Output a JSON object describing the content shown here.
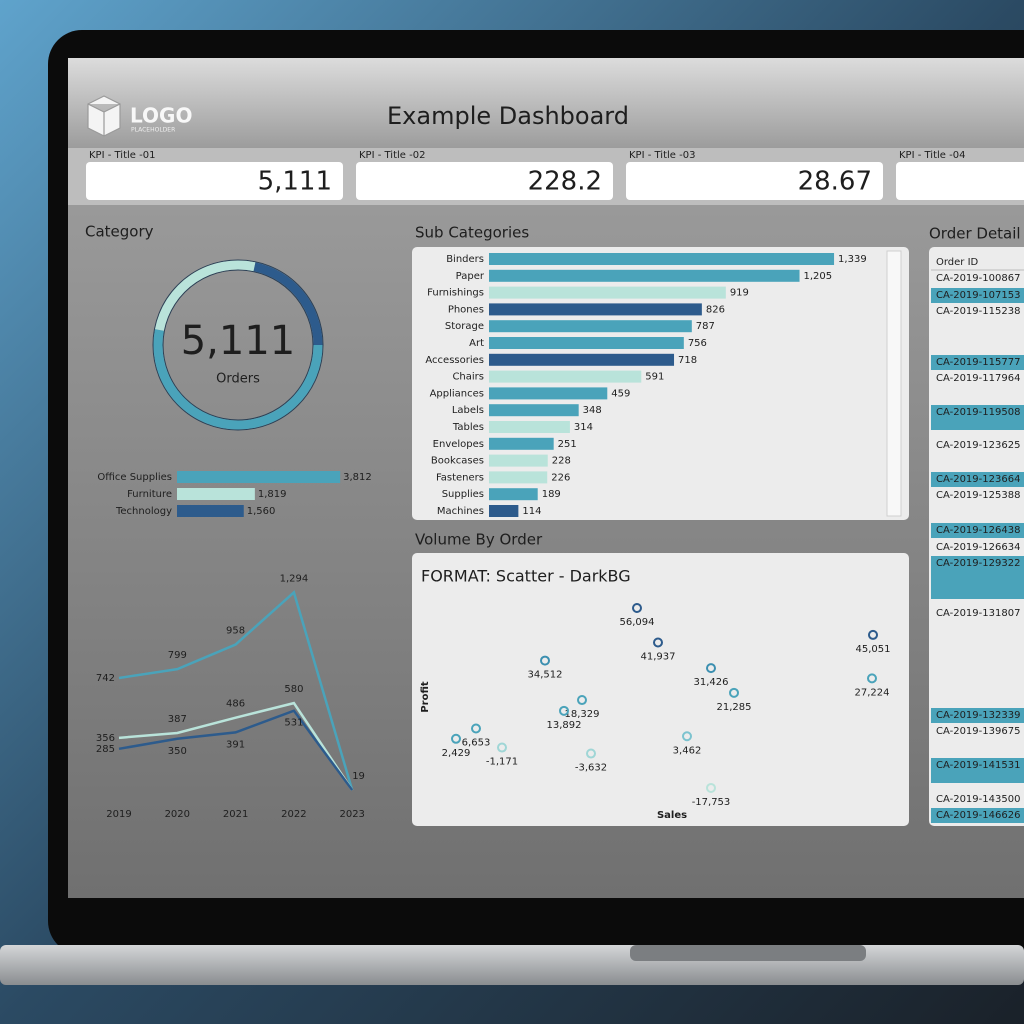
{
  "header": {
    "logo": "LOGO",
    "logo_sub": "PLACEHOLDER",
    "title": "Example Dashboard"
  },
  "kpis": [
    {
      "title": "KPI - Title -01",
      "value": "5,111"
    },
    {
      "title": "KPI - Title -02",
      "value": "228.2"
    },
    {
      "title": "KPI - Title -03",
      "value": "28.67"
    },
    {
      "title": "KPI - Title -04"
    }
  ],
  "chart_data": [
    {
      "type": "donut",
      "title": "Category",
      "center_value": "5,111",
      "center_label": "Orders",
      "categories": [
        "Office Supplies",
        "Furniture",
        "Technology"
      ],
      "values": [
        3812,
        1819,
        1560
      ],
      "value_labels": [
        "3,812",
        "1,819",
        "1,560"
      ],
      "colors": [
        "#4aa3ba",
        "#b9e3da",
        "#2d5b8c"
      ]
    },
    {
      "type": "line",
      "categories": [
        "2019",
        "2020",
        "2021",
        "2022",
        "2023"
      ],
      "series": [
        {
          "color": "#4aa3ba",
          "values": [
            742,
            799,
            958,
            1294,
            19
          ],
          "value_labels": [
            "742",
            "799",
            "958",
            "1,294",
            "19"
          ]
        },
        {
          "color": "#b9e3da",
          "values": [
            356,
            387,
            486,
            580,
            19
          ],
          "value_labels": [
            "356",
            "387",
            "486",
            "580",
            null
          ]
        },
        {
          "color": "#2d5b8c",
          "values": [
            285,
            350,
            391,
            531,
            19
          ],
          "value_labels": [
            "285",
            "350",
            "391",
            "531",
            null
          ]
        }
      ]
    },
    {
      "type": "bar",
      "orientation": "horizontal",
      "title": "Sub Categories",
      "categories": [
        "Binders",
        "Paper",
        "Furnishings",
        "Phones",
        "Storage",
        "Art",
        "Accessories",
        "Chairs",
        "Appliances",
        "Labels",
        "Tables",
        "Envelopes",
        "Bookcases",
        "Fasteners",
        "Supplies",
        "Machines"
      ],
      "values": [
        1339,
        1205,
        919,
        826,
        787,
        756,
        718,
        591,
        459,
        348,
        314,
        251,
        228,
        226,
        189,
        114
      ],
      "value_labels": [
        "1,339",
        "1,205",
        "919",
        "826",
        "787",
        "756",
        "718",
        "591",
        "459",
        "348",
        "314",
        "251",
        "228",
        "226",
        "189",
        "114"
      ],
      "colors": [
        "#4aa3ba",
        "#4aa3ba",
        "#b9e3da",
        "#2d5b8c",
        "#4aa3ba",
        "#4aa3ba",
        "#2d5b8c",
        "#b9e3da",
        "#4aa3ba",
        "#4aa3ba",
        "#b9e3da",
        "#4aa3ba",
        "#b9e3da",
        "#b9e3da",
        "#4aa3ba",
        "#2d5b8c"
      ]
    },
    {
      "type": "scatter",
      "title": "Volume By Order",
      "subtitle": "FORMAT: Scatter - DarkBG",
      "x_label": "Sales",
      "y_label": "Profit",
      "x": [
        39400,
        43600,
        21000,
        54200,
        86600,
        28400,
        24800,
        58800,
        86400,
        49400,
        7200,
        3200,
        12400,
        30200,
        54200
      ],
      "values": [
        56094,
        41937,
        34512,
        31426,
        45051,
        18329,
        13892,
        21285,
        27224,
        3462,
        6653,
        2429,
        -1171,
        -3632,
        -17753
      ],
      "value_labels": [
        "56,094",
        "41,937",
        "34,512",
        "31,426",
        "45,051",
        "18,329",
        "13,892",
        "21,285",
        "27,224",
        "3,462",
        "6,653",
        "2,429",
        "-1,171",
        "-3,632",
        "-17,753"
      ],
      "colors": [
        "#2d5b8c",
        "#2d5b8c",
        "#3b8fb0",
        "#3b8fb0",
        "#2d5b8c",
        "#4aa3ba",
        "#4aa3ba",
        "#4aa3ba",
        "#4aa3ba",
        "#7cc3cf",
        "#4aa3ba",
        "#4aa3ba",
        "#9fd6d6",
        "#9fd6d6",
        "#b9e3da"
      ]
    }
  ],
  "order_table": {
    "title": "Order Detail",
    "header": "Order ID",
    "rows": [
      "CA-2019-100867",
      "CA-2019-107153",
      "CA-2019-115238",
      "CA-2019-115777",
      "CA-2019-117964",
      "CA-2019-119508",
      "CA-2019-123625",
      "CA-2019-123664",
      "CA-2019-125388",
      "CA-2019-126438",
      "CA-2019-126634",
      "CA-2019-129322",
      "CA-2019-131807",
      "CA-2019-132339",
      "CA-2019-139675",
      "CA-2019-141531",
      "CA-2019-143500",
      "CA-2019-146626"
    ],
    "highlight": [
      false,
      true,
      false,
      true,
      false,
      true,
      false,
      true,
      false,
      true,
      false,
      true,
      false,
      true,
      false,
      true,
      false,
      true
    ]
  }
}
